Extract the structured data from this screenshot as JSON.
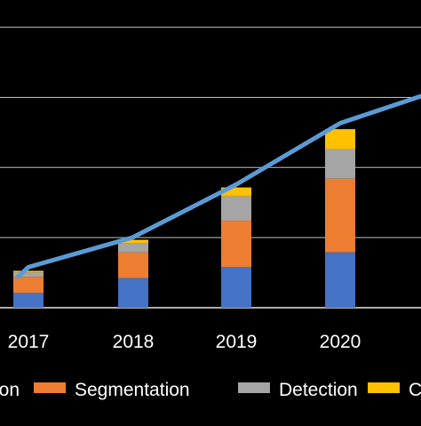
{
  "chart_data": {
    "type": "bar",
    "stacked": true,
    "categories": [
      "2017",
      "2018",
      "2019",
      "2020"
    ],
    "series": [
      {
        "name": "",
        "color": "#4472C4",
        "values": [
          20,
          40,
          55,
          75
        ]
      },
      {
        "name": "Segmentation",
        "color": "#ED7D31",
        "values": [
          22,
          35,
          63,
          100
        ]
      },
      {
        "name": "Detection",
        "color": "#A5A5A5",
        "values": [
          6,
          12,
          33,
          40
        ]
      },
      {
        "name": "",
        "color": "#FFC000",
        "values": [
          2,
          5,
          12,
          27
        ]
      }
    ],
    "line": {
      "color": "#5B9BD5",
      "x": [
        "2016.9",
        "2017",
        "2018",
        "2019",
        "2020",
        "2021"
      ],
      "values": [
        42,
        55,
        95,
        167,
        250,
        297
      ]
    },
    "gridlines_y": [
      0,
      95,
      190,
      285,
      380
    ],
    "ylim": [
      0,
      400
    ],
    "grid": true,
    "legend_position": "bottom",
    "legend_labels": [
      "on",
      "Segmentation",
      "Detection",
      "C"
    ],
    "legend_colors": [
      "#4472C4",
      "#ED7D31",
      "#A5A5A5",
      "#FFC000"
    ]
  }
}
